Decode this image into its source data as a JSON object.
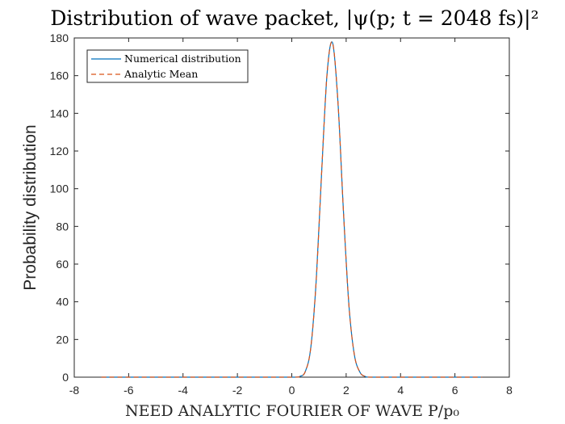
{
  "chart_data": {
    "type": "line",
    "title": "Distribution of wave packet, |ψ(p; t = 2048 fs)|²",
    "xlabel": "NEED ANALYTIC FOURIER OF WAVE P/p₀",
    "ylabel": "Probability distribution",
    "xlim": [
      -8,
      8
    ],
    "ylim": [
      0,
      180
    ],
    "xticks": [
      "-8",
      "-6",
      "-4",
      "-2",
      "0",
      "2",
      "4",
      "6",
      "8"
    ],
    "yticks": [
      "0",
      "20",
      "40",
      "60",
      "80",
      "100",
      "120",
      "140",
      "160",
      "180"
    ],
    "grid": false,
    "legend_position": "top-left",
    "series": [
      {
        "name": "Numerical distribution",
        "color": "#0072BD",
        "style": "solid",
        "x": [
          -7,
          -2,
          0,
          0.3,
          0.5,
          0.7,
          0.9,
          1.1,
          1.3,
          1.5,
          1.7,
          1.9,
          2.1,
          2.3,
          2.5,
          2.7,
          3,
          5,
          7
        ],
        "y": [
          0,
          0,
          0,
          0.4,
          3.1,
          15.8,
          51.7,
          109.2,
          161.4,
          177.4,
          145.5,
          88.1,
          38.5,
          12.0,
          2.8,
          0.4,
          0,
          0,
          0
        ]
      },
      {
        "name": "Analytic Mean",
        "color": "#D95319",
        "style": "dashed",
        "x": [
          -7,
          -2,
          0,
          0.3,
          0.5,
          0.7,
          0.9,
          1.1,
          1.3,
          1.5,
          1.7,
          1.9,
          2.1,
          2.3,
          2.5,
          2.7,
          3,
          5,
          7
        ],
        "y": [
          0,
          0,
          0,
          0.4,
          3.1,
          15.8,
          51.7,
          109.2,
          161.4,
          177.4,
          145.5,
          88.1,
          38.5,
          12.0,
          2.8,
          0.4,
          0,
          0,
          0
        ]
      }
    ]
  }
}
